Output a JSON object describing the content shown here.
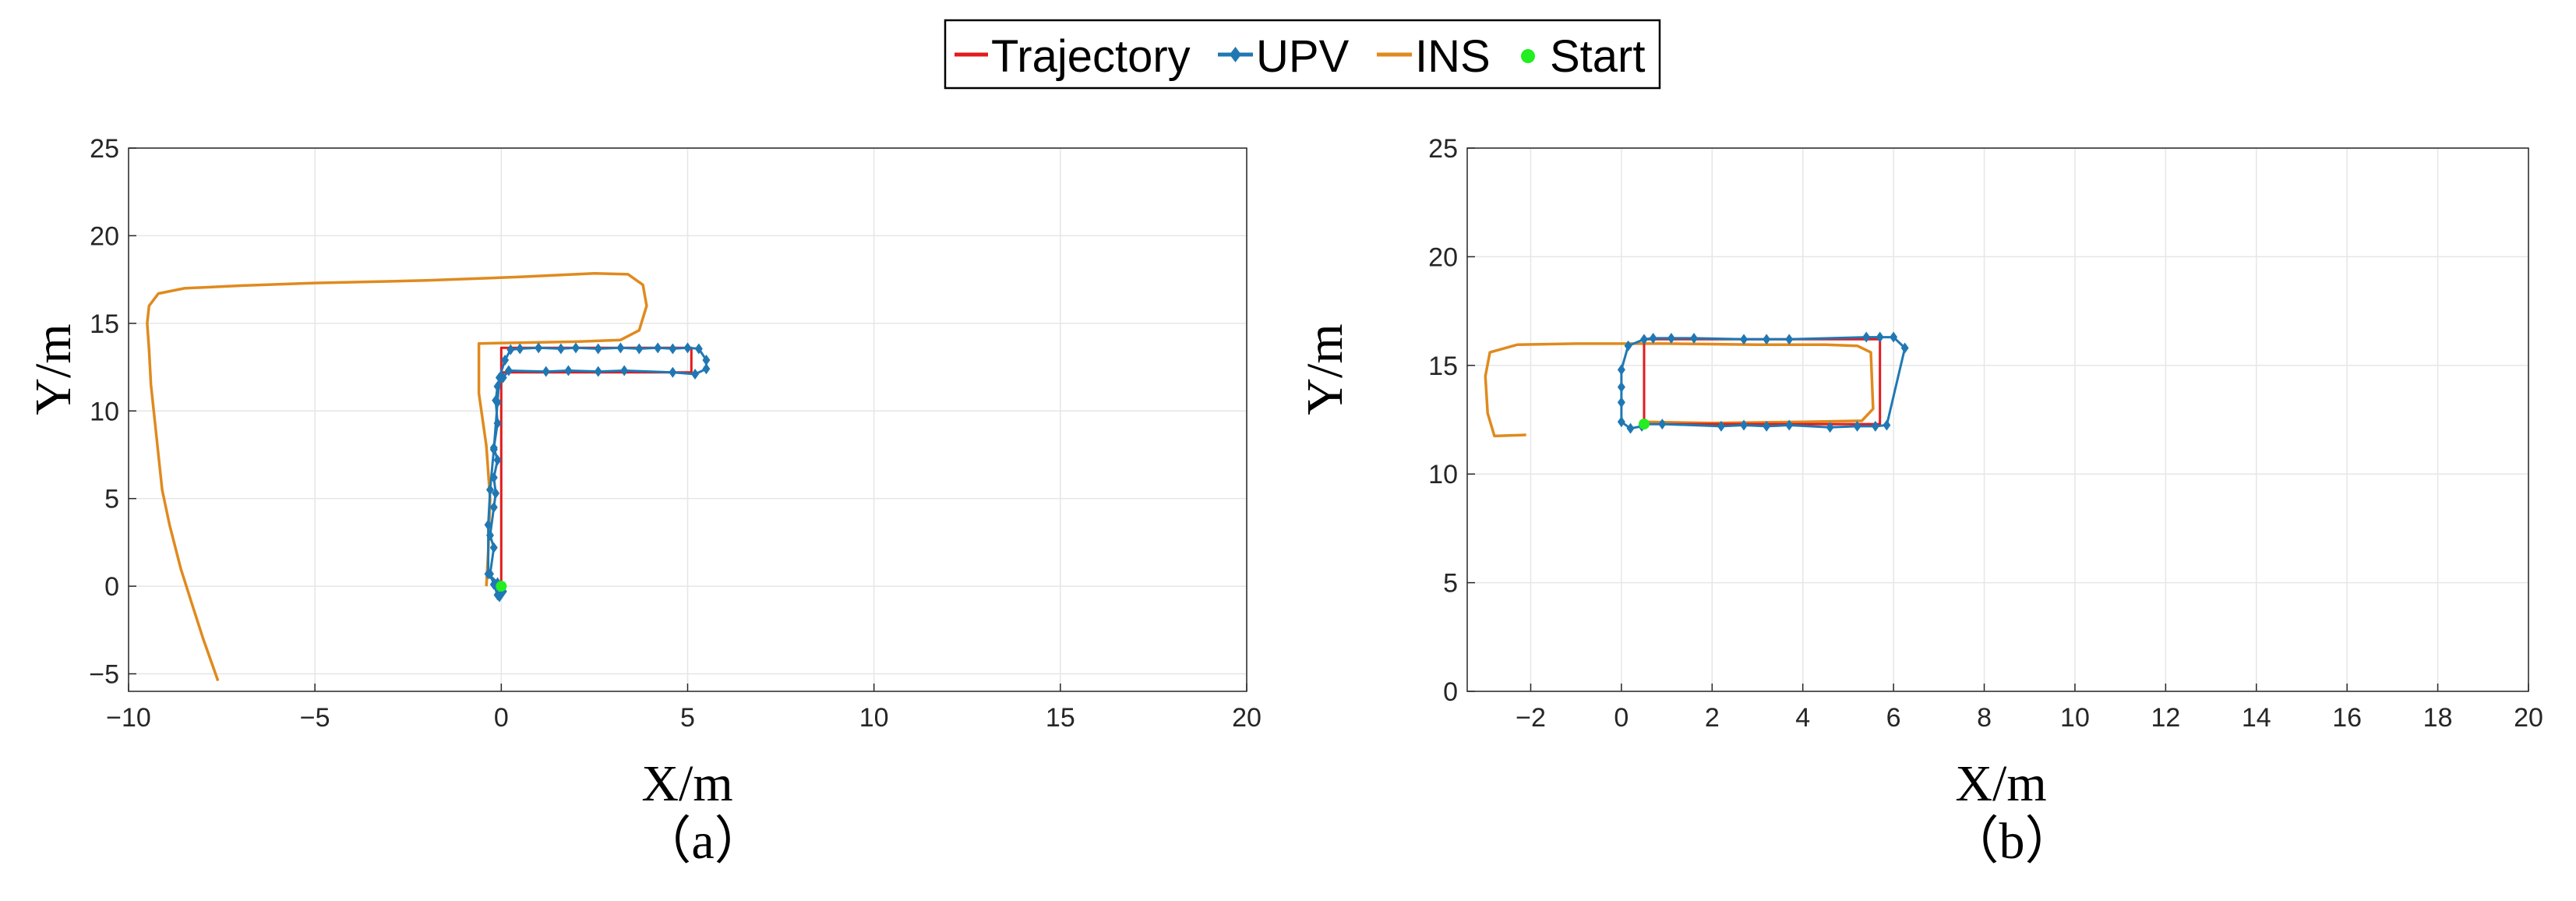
{
  "legend": {
    "placement": "top-center",
    "entries": [
      {
        "label": "Trajectory",
        "color": "#e31a1c",
        "style": "line"
      },
      {
        "label": "UPV",
        "color": "#1f78b4",
        "style": "line-diamond"
      },
      {
        "label": "INS",
        "color": "#e08a1e",
        "style": "line"
      },
      {
        "label": "Start",
        "color": "#22ee22",
        "style": "dot"
      }
    ]
  },
  "chart_data": [
    {
      "type": "line",
      "caption": "（a）",
      "xlabel": "X/m",
      "ylabel": "Y/m",
      "xlim": [
        -10,
        20
      ],
      "ylim": [
        -6,
        25
      ],
      "xticks": [
        -10,
        -5,
        0,
        5,
        10,
        15,
        20
      ],
      "yticks": [
        -5,
        0,
        5,
        10,
        15,
        20,
        25
      ],
      "xtick_labels": [
        "−10",
        "−5",
        "0",
        "5",
        "10",
        "15",
        "20"
      ],
      "ytick_labels": [
        "−5",
        "0",
        "5",
        "10",
        "15",
        "20",
        "25"
      ],
      "grid": true,
      "series": [
        {
          "name": "Trajectory",
          "color": "#e31a1c",
          "marker": "none",
          "points": [
            [
              0,
              0
            ],
            [
              0,
              12.2
            ],
            [
              5.1,
              12.2
            ],
            [
              5.1,
              13.6
            ],
            [
              0,
              13.6
            ],
            [
              0,
              12.2
            ]
          ]
        },
        {
          "name": "UPV",
          "color": "#1f78b4",
          "marker": "diamond",
          "points": [
            [
              -0.1,
              -0.5
            ],
            [
              -0.2,
              0.1
            ],
            [
              -0.3,
              0.7
            ],
            [
              -0.2,
              2.2
            ],
            [
              -0.3,
              2.9
            ],
            [
              -0.2,
              4.5
            ],
            [
              -0.15,
              5.3
            ],
            [
              -0.2,
              6.2
            ],
            [
              -0.1,
              7.2
            ],
            [
              -0.2,
              7.9
            ],
            [
              -0.1,
              9.3
            ],
            [
              -0.15,
              10.6
            ],
            [
              -0.1,
              11.4
            ],
            [
              0.05,
              11.9
            ],
            [
              0.2,
              12.3
            ],
            [
              1.2,
              12.25
            ],
            [
              1.8,
              12.3
            ],
            [
              2.6,
              12.25
            ],
            [
              3.3,
              12.3
            ],
            [
              4.6,
              12.2
            ],
            [
              5.2,
              12.1
            ],
            [
              5.5,
              12.4
            ],
            [
              5.5,
              12.9
            ],
            [
              5.3,
              13.55
            ],
            [
              5.0,
              13.6
            ],
            [
              4.6,
              13.55
            ],
            [
              4.2,
              13.6
            ],
            [
              3.7,
              13.55
            ],
            [
              3.2,
              13.6
            ],
            [
              2.6,
              13.55
            ],
            [
              2.0,
              13.6
            ],
            [
              1.6,
              13.55
            ],
            [
              1.0,
              13.6
            ],
            [
              0.5,
              13.55
            ],
            [
              0.25,
              13.5
            ],
            [
              0.1,
              12.9
            ],
            [
              -0.05,
              11.9
            ],
            [
              -0.1,
              10.5
            ],
            [
              -0.2,
              7.8
            ],
            [
              -0.3,
              5.5
            ],
            [
              -0.35,
              3.5
            ],
            [
              -0.35,
              0.7
            ],
            [
              -0.1,
              0.2
            ],
            [
              0.05,
              -0.3
            ],
            [
              -0.05,
              -0.6
            ]
          ]
        },
        {
          "name": "INS",
          "color": "#e08a1e",
          "marker": "none",
          "points": [
            [
              -7.6,
              -5.4
            ],
            [
              -8.0,
              -3.0
            ],
            [
              -8.3,
              -1.0
            ],
            [
              -8.6,
              1.0
            ],
            [
              -8.9,
              3.5
            ],
            [
              -9.1,
              5.5
            ],
            [
              -9.2,
              7.5
            ],
            [
              -9.3,
              9.5
            ],
            [
              -9.4,
              11.5
            ],
            [
              -9.45,
              13.5
            ],
            [
              -9.5,
              15.0
            ],
            [
              -9.45,
              16.0
            ],
            [
              -9.2,
              16.7
            ],
            [
              -8.5,
              17.0
            ],
            [
              -7.0,
              17.15
            ],
            [
              -5.0,
              17.3
            ],
            [
              -2.0,
              17.45
            ],
            [
              0.5,
              17.65
            ],
            [
              2.5,
              17.85
            ],
            [
              3.4,
              17.8
            ],
            [
              3.8,
              17.2
            ],
            [
              3.9,
              16.0
            ],
            [
              3.7,
              14.6
            ],
            [
              3.2,
              14.05
            ],
            [
              2.0,
              13.95
            ],
            [
              0.6,
              13.9
            ],
            [
              -0.6,
              13.85
            ],
            [
              -0.6,
              11.0
            ],
            [
              -0.4,
              8.0
            ],
            [
              -0.3,
              5.0
            ],
            [
              -0.35,
              2.0
            ],
            [
              -0.4,
              0.0
            ]
          ]
        },
        {
          "name": "Start",
          "color": "#22ee22",
          "marker": "dot",
          "points": [
            [
              0.0,
              0.0
            ]
          ]
        }
      ]
    },
    {
      "type": "line",
      "caption": "（b）",
      "xlabel": "X/m",
      "ylabel": "Y/m",
      "xlim": [
        -3.4,
        20
      ],
      "ylim": [
        0,
        25
      ],
      "xticks": [
        -2,
        0,
        2,
        4,
        6,
        8,
        10,
        12,
        14,
        16,
        18,
        20
      ],
      "yticks": [
        0,
        5,
        10,
        15,
        20,
        25
      ],
      "xtick_labels": [
        "−2",
        "0",
        "2",
        "4",
        "6",
        "8",
        "10",
        "12",
        "14",
        "16",
        "18",
        "20"
      ],
      "ytick_labels": [
        "0",
        "5",
        "10",
        "15",
        "20",
        "25"
      ],
      "grid": true,
      "series": [
        {
          "name": "Trajectory",
          "color": "#e31a1c",
          "marker": "none",
          "points": [
            [
              0.5,
              12.3
            ],
            [
              5.7,
              12.3
            ],
            [
              5.7,
              16.2
            ],
            [
              0.5,
              16.2
            ],
            [
              0.5,
              12.3
            ]
          ]
        },
        {
          "name": "UPV",
          "color": "#1f78b4",
          "marker": "diamond",
          "points": [
            [
              0.5,
              12.3
            ],
            [
              0.9,
              12.3
            ],
            [
              2.2,
              12.2
            ],
            [
              2.7,
              12.25
            ],
            [
              3.2,
              12.2
            ],
            [
              3.7,
              12.25
            ],
            [
              4.6,
              12.15
            ],
            [
              5.2,
              12.2
            ],
            [
              5.6,
              12.2
            ],
            [
              5.85,
              12.25
            ],
            [
              6.25,
              15.8
            ],
            [
              6.0,
              16.3
            ],
            [
              5.7,
              16.3
            ],
            [
              5.4,
              16.3
            ],
            [
              3.7,
              16.2
            ],
            [
              3.2,
              16.2
            ],
            [
              2.7,
              16.2
            ],
            [
              1.6,
              16.25
            ],
            [
              1.1,
              16.25
            ],
            [
              0.7,
              16.25
            ],
            [
              0.5,
              16.2
            ],
            [
              0.15,
              15.9
            ],
            [
              0.0,
              14.8
            ],
            [
              0.0,
              14.0
            ],
            [
              0.0,
              13.3
            ],
            [
              0.0,
              12.4
            ],
            [
              0.2,
              12.1
            ],
            [
              0.45,
              12.2
            ]
          ]
        },
        {
          "name": "INS",
          "color": "#e08a1e",
          "marker": "none",
          "points": [
            [
              -2.1,
              11.8
            ],
            [
              -2.8,
              11.75
            ],
            [
              -2.95,
              12.8
            ],
            [
              -3.0,
              14.5
            ],
            [
              -2.9,
              15.6
            ],
            [
              -2.3,
              15.95
            ],
            [
              -1.0,
              16.0
            ],
            [
              1.0,
              16.0
            ],
            [
              3.0,
              15.95
            ],
            [
              4.5,
              15.95
            ],
            [
              5.2,
              15.9
            ],
            [
              5.5,
              15.6
            ],
            [
              5.55,
              13.0
            ],
            [
              5.3,
              12.45
            ],
            [
              4.0,
              12.4
            ],
            [
              2.0,
              12.35
            ],
            [
              0.5,
              12.4
            ]
          ]
        },
        {
          "name": "Start",
          "color": "#22ee22",
          "marker": "dot",
          "points": [
            [
              0.5,
              12.3
            ]
          ]
        }
      ]
    }
  ]
}
